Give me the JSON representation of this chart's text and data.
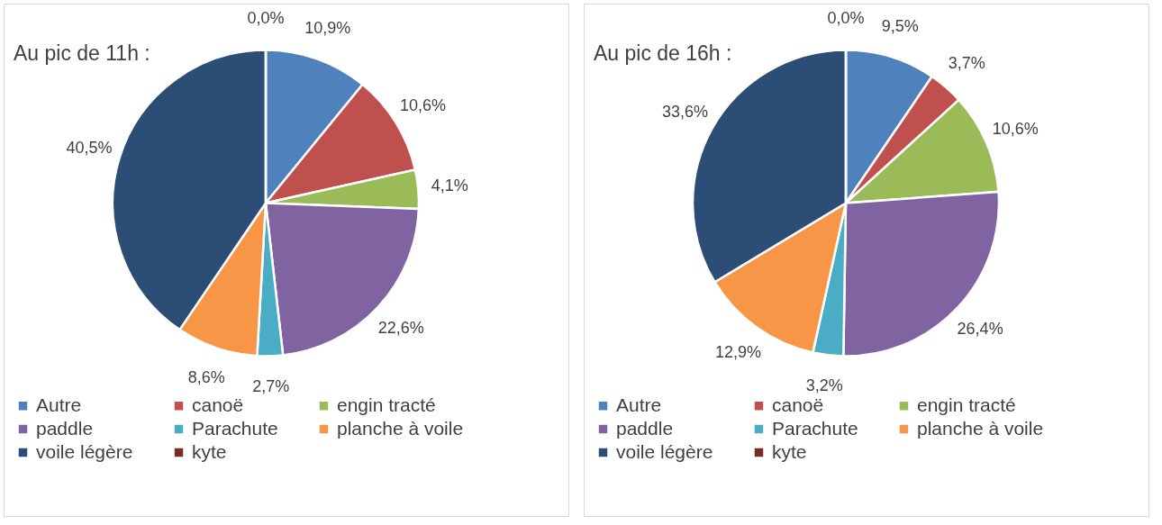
{
  "chart_data": [
    {
      "type": "pie",
      "title": "Au pic de 11h :",
      "categories": [
        "Autre",
        "canoë",
        "engin tracté",
        "paddle",
        "Parachute",
        "planche à voile",
        "voile légère",
        "kyte"
      ],
      "values": [
        10.9,
        10.6,
        4.1,
        22.6,
        2.7,
        8.6,
        40.5,
        0.0
      ],
      "value_labels": [
        "10,9%",
        "10,6%",
        "4,1%",
        "22,6%",
        "2,7%",
        "8,6%",
        "40,5%",
        "0,0%"
      ],
      "colors": [
        "#4f81bd",
        "#c0504d",
        "#9bbb59",
        "#8064a2",
        "#4bacc6",
        "#f79646",
        "#2c4d75",
        "#772c2a"
      ],
      "legend": "bottom"
    },
    {
      "type": "pie",
      "title": "Au pic de 16h :",
      "categories": [
        "Autre",
        "canoë",
        "engin tracté",
        "paddle",
        "Parachute",
        "planche à voile",
        "voile légère",
        "kyte"
      ],
      "values": [
        9.5,
        3.7,
        10.6,
        26.4,
        3.2,
        12.9,
        33.6,
        0.0
      ],
      "value_labels": [
        "9,5%",
        "3,7%",
        "10,6%",
        "26,4%",
        "3,2%",
        "12,9%",
        "33,6%",
        "0,0%"
      ],
      "colors": [
        "#4f81bd",
        "#c0504d",
        "#9bbb59",
        "#8064a2",
        "#4bacc6",
        "#f79646",
        "#2c4d75",
        "#772c2a"
      ],
      "legend": "bottom"
    }
  ]
}
